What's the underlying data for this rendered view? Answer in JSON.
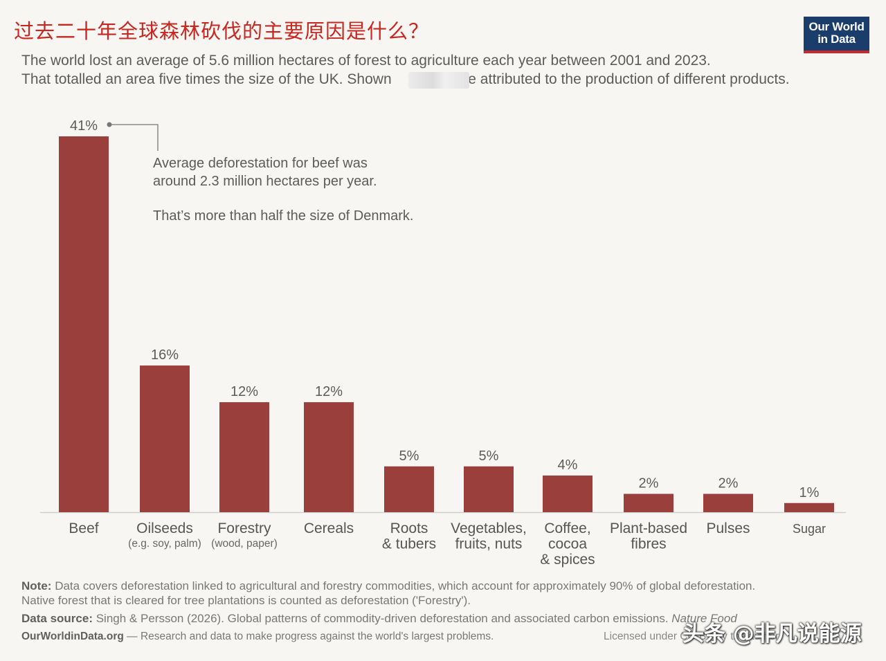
{
  "cn_title": "过去二十年全球森林砍伐的主要原因是什么？",
  "logo": {
    "line1": "Our World",
    "line2": "in Data"
  },
  "subtitle": {
    "line1": "The world lost an average of 5.6 million hectares of forest to agriculture each year between 2001 and 2023.",
    "line2a": "That totalled an area five times the size of the UK. Shown",
    "line2b": "are attributed to the production of different products."
  },
  "annotation": {
    "line1": "Average deforestation for beef was",
    "line2": "around 2.3 million hectares per year.",
    "line3": "That’s more than half the size of Denmark."
  },
  "colors": {
    "bar": "#9b3f3d",
    "axis": "#cfcfcf"
  },
  "chart_data": {
    "type": "bar",
    "unit": "%",
    "categories": [
      {
        "label": [
          "Beef"
        ],
        "sub": ""
      },
      {
        "label": [
          "Oilseeds"
        ],
        "sub": "(e.g. soy, palm)"
      },
      {
        "label": [
          "Forestry"
        ],
        "sub": "(wood, paper)"
      },
      {
        "label": [
          "Cereals"
        ],
        "sub": ""
      },
      {
        "label": [
          "Roots",
          "& tubers"
        ],
        "sub": ""
      },
      {
        "label": [
          "Vegetables,",
          "fruits, nuts"
        ],
        "sub": ""
      },
      {
        "label": [
          "Coffee,",
          "cocoa",
          "& spices"
        ],
        "sub": ""
      },
      {
        "label": [
          "Plant-based",
          "fibres"
        ],
        "sub": ""
      },
      {
        "label": [
          "Pulses"
        ],
        "sub": ""
      },
      {
        "label": [
          "Sugar"
        ],
        "sub": ""
      }
    ],
    "values": [
      41,
      16,
      12,
      12,
      5,
      5,
      4,
      2,
      2,
      1
    ],
    "data_labels": [
      "41%",
      "16%",
      "12%",
      "12%",
      "5%",
      "5%",
      "4%",
      "2%",
      "2%",
      "1%"
    ]
  },
  "note": {
    "label": "Note:",
    "line1": "Data covers deforestation linked to agricultural and forestry commodities, which account for approximately 90% of global deforestation.",
    "line2": "Native forest that is cleared for tree plantations is counted as deforestation ('Forestry')."
  },
  "source": {
    "label": "Data source:",
    "text": "Singh & Persson (2026). Global patterns of commodity-driven deforestation and associated carbon emissions.",
    "journal": "Nature Food"
  },
  "footer": {
    "site": "OurWorldinData.org",
    "tagline": " — Research and data to make progress against the world's largest problems.",
    "license": "Licensed under CC-BY by the author"
  },
  "watermark": "头条 @非凡说能源"
}
